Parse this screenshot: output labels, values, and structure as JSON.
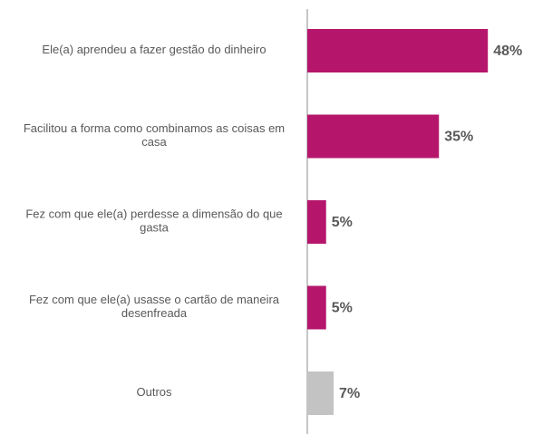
{
  "chart_data": {
    "type": "barh",
    "categories": [
      "Ele(a) aprendeu a fazer gestão do dinheiro",
      "Facilitou a forma como combinamos as coisas em casa",
      "Fez com que ele(a) perdesse a dimensão do que gasta",
      "Fez com que ele(a) usasse o cartão de maneira desenfreada",
      "Outros"
    ],
    "values": [
      48,
      35,
      5,
      5,
      7
    ],
    "value_labels": [
      "48%",
      "35%",
      "5%",
      "5%",
      "7%"
    ],
    "colors": [
      "#b5166b",
      "#b5166b",
      "#b5166b",
      "#b5166b",
      "#c3c3c3"
    ]
  }
}
